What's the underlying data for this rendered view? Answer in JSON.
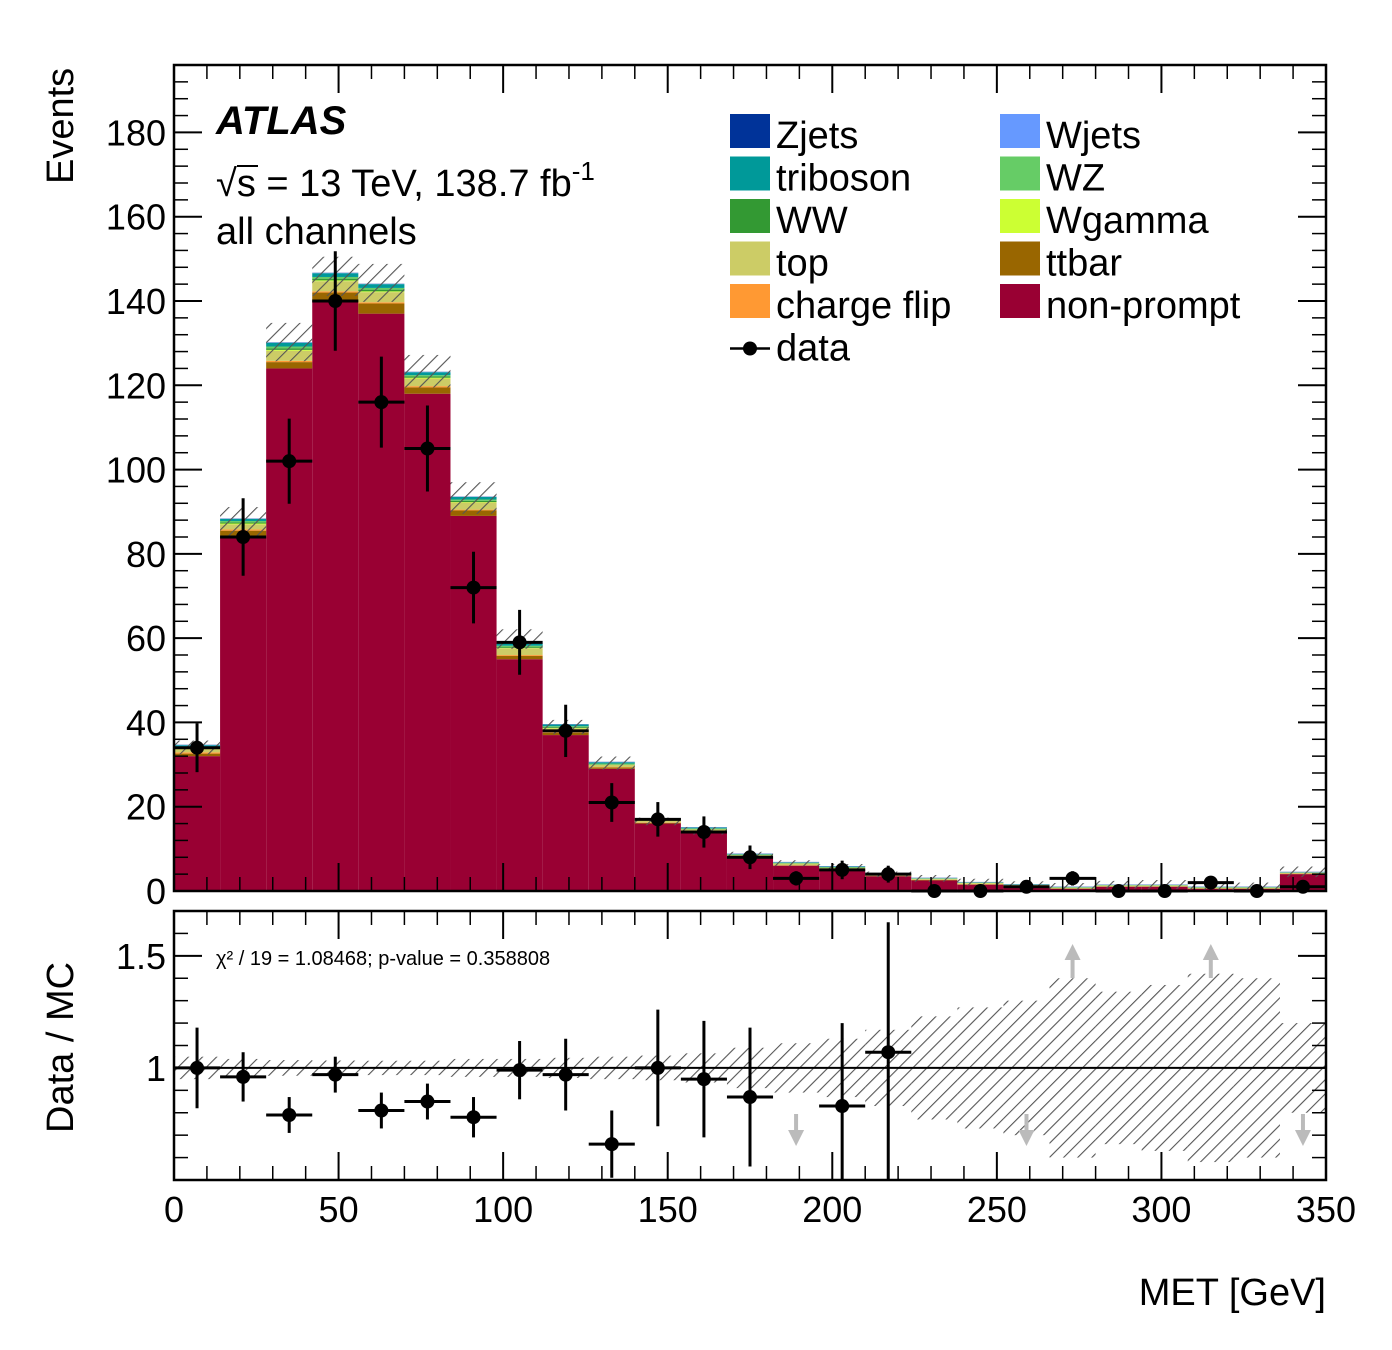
{
  "chart_data": [
    {
      "type": "bar",
      "stacked": true,
      "ylabel": "Events",
      "ylim": [
        0,
        196
      ],
      "yticks": [
        0,
        20,
        40,
        60,
        80,
        100,
        120,
        140,
        160,
        180
      ],
      "bin_width": 14,
      "x": [
        7,
        21,
        35,
        49,
        63,
        77,
        91,
        105,
        119,
        133,
        147,
        161,
        175,
        189,
        203,
        217,
        231,
        245,
        259,
        273,
        287,
        301,
        315,
        329,
        343
      ],
      "series": [
        {
          "name": "non-prompt",
          "color": "#990033",
          "values": [
            32,
            84,
            124,
            140,
            137,
            118,
            89,
            55,
            37,
            29,
            16,
            14,
            8,
            6,
            5,
            3.5,
            2.5,
            1.5,
            1,
            0.5,
            1,
            1,
            0.5,
            0.5,
            4
          ]
        },
        {
          "name": "ttbar",
          "color": "#996600",
          "values": [
            0.6,
            1.5,
            1.5,
            2,
            2.4,
            1.5,
            1.3,
            0.8,
            0.5,
            0.3,
            0.2,
            0.2,
            0.1,
            0.1,
            0.1,
            0.1,
            0.1,
            0.1,
            0.1,
            0.1,
            0.1,
            0.1,
            0.1,
            0.1,
            0.1
          ]
        },
        {
          "name": "charge flip",
          "color": "#ff9933",
          "values": [
            0.3,
            0.3,
            0.3,
            0.3,
            0.3,
            0.3,
            0.2,
            0.2,
            0.1,
            0.1,
            0.1,
            0.1,
            0.05,
            0.05,
            0.05,
            0.05,
            0.05,
            0.05,
            0.05,
            0.05,
            0.05,
            0.05,
            0.05,
            0.05,
            0.05
          ]
        },
        {
          "name": "top",
          "color": "#cccc66",
          "values": [
            0.8,
            1.2,
            2.4,
            2.4,
            2.4,
            1.8,
            1.7,
            1.6,
            1,
            0.5,
            0.4,
            0.3,
            0.3,
            0.3,
            0.3,
            0.2,
            0.2,
            0.2,
            0.2,
            0.1,
            0.1,
            0.1,
            0.1,
            0.1,
            0.1
          ]
        },
        {
          "name": "Wgamma",
          "color": "#ccff33",
          "values": [
            0.1,
            0.2,
            0.2,
            0.2,
            0.2,
            0.2,
            0.1,
            0.1,
            0.1,
            0.05,
            0.05,
            0.05,
            0.05,
            0.05,
            0.05,
            0.05,
            0.05,
            0.05,
            0.05,
            0.05,
            0.05,
            0.05,
            0.05,
            0.05,
            0.05
          ]
        },
        {
          "name": "WW",
          "color": "#339933",
          "values": [
            0.2,
            0.3,
            0.4,
            0.4,
            0.4,
            0.3,
            0.3,
            0.2,
            0.2,
            0.1,
            0.1,
            0.1,
            0.1,
            0.1,
            0.1,
            0.1,
            0.05,
            0.05,
            0.05,
            0.05,
            0.05,
            0.05,
            0.05,
            0.05,
            0.05
          ]
        },
        {
          "name": "WZ",
          "color": "#66cc66",
          "values": [
            0.3,
            0.3,
            0.4,
            0.4,
            0.4,
            0.3,
            0.3,
            0.3,
            0.2,
            0.2,
            0.1,
            0.1,
            0.1,
            0.1,
            0.1,
            0.1,
            0.05,
            0.05,
            0.05,
            0.05,
            0.05,
            0.05,
            0.05,
            0.05,
            0.05
          ]
        },
        {
          "name": "triboson",
          "color": "#009999",
          "values": [
            0.3,
            0.5,
            0.9,
            0.9,
            0.9,
            0.7,
            0.6,
            0.5,
            0.4,
            0.3,
            0.2,
            0.2,
            0.1,
            0.1,
            0.1,
            0.1,
            0.05,
            0.05,
            0.05,
            0.05,
            0.05,
            0.05,
            0.05,
            0.05,
            0.05
          ]
        },
        {
          "name": "Wjets",
          "color": "#6699ff",
          "values": [
            0.05,
            0.05,
            0.05,
            0.05,
            0.05,
            0.05,
            0.05,
            0.05,
            0.05,
            0.05,
            0.05,
            0.05,
            0.05,
            0.05,
            0.05,
            0.05,
            0.05,
            0.05,
            0.05,
            0.05,
            0.05,
            0.05,
            0.05,
            0.05,
            0.05
          ]
        },
        {
          "name": "Zjets",
          "color": "#003399",
          "values": [
            0.05,
            0.05,
            0.05,
            0.05,
            0.05,
            0.05,
            0.05,
            0.05,
            0.05,
            0.05,
            0.05,
            0.05,
            0.05,
            0.05,
            0.05,
            0.05,
            0.05,
            0.05,
            0.05,
            0.05,
            0.05,
            0.05,
            0.05,
            0.05,
            0.05
          ]
        }
      ],
      "uncertainty_band": {
        "low": [
          32.4,
          84.2,
          125.7,
          141.2,
          139.8,
          119.5,
          89.5,
          57.5,
          37.2,
          28.8,
          15.6,
          13.4,
          7.8,
          5.9,
          5.0,
          3.3,
          2.2,
          1.3,
          0.7,
          0.3,
          0.6,
          0.5,
          0.3,
          0.3,
          3.3
        ],
        "high": [
          35.7,
          91.1,
          134.8,
          150.5,
          148.8,
          127.2,
          97.0,
          62.1,
          40.6,
          31.9,
          17.4,
          15.2,
          9.3,
          7.3,
          6.4,
          4.6,
          3.8,
          2.9,
          2.3,
          1.9,
          2.4,
          2.6,
          2.1,
          2.0,
          5.8
        ]
      },
      "data": {
        "name": "data",
        "x": [
          7,
          21,
          35,
          49,
          63,
          77,
          91,
          105,
          119,
          133,
          147,
          161,
          175,
          189,
          203,
          217,
          231,
          245,
          259,
          273,
          287,
          301,
          315,
          329,
          343
        ],
        "y": [
          34,
          84,
          102,
          140,
          116,
          105,
          72,
          59,
          38,
          21,
          17,
          14,
          8,
          3,
          5,
          4,
          0,
          0,
          1,
          3,
          0,
          0,
          2,
          0,
          1
        ],
        "yerr": [
          5.8,
          9.2,
          10.1,
          11.8,
          10.8,
          10.2,
          8.5,
          7.7,
          6.2,
          4.6,
          4.1,
          3.7,
          2.8,
          1.7,
          2.2,
          2.0,
          0,
          0,
          1.0,
          1.7,
          0,
          0,
          1.4,
          0,
          1.0
        ]
      }
    },
    {
      "type": "scatter",
      "xlabel": "MET [GeV]",
      "ylabel": "Data / MC",
      "xlim": [
        0,
        350
      ],
      "xticks": [
        0,
        50,
        100,
        150,
        200,
        250,
        300,
        350
      ],
      "ylim": [
        0.5,
        1.7
      ],
      "ytick_labels": [
        {
          "value": 1,
          "label": "1"
        },
        {
          "value": 1.5,
          "label": "1.5"
        }
      ],
      "x": [
        7,
        21,
        35,
        49,
        63,
        77,
        91,
        105,
        119,
        133,
        147,
        161,
        175,
        189,
        203,
        217,
        231,
        245,
        259,
        273,
        287,
        301,
        315,
        329,
        343
      ],
      "ratio": [
        1.0,
        0.96,
        0.79,
        0.97,
        0.81,
        0.85,
        0.78,
        0.99,
        0.97,
        0.66,
        1.0,
        0.95,
        0.87,
        null,
        0.83,
        1.07,
        null,
        null,
        null,
        null,
        null,
        null,
        null,
        null,
        null
      ],
      "ratio_err": [
        0.18,
        0.11,
        0.08,
        0.08,
        0.08,
        0.08,
        0.09,
        0.13,
        0.16,
        0.15,
        0.26,
        0.26,
        0.31,
        0,
        0.37,
        0.58,
        0,
        0,
        0,
        0,
        0,
        0,
        0,
        0,
        0
      ],
      "band_halfwidth": [
        0.05,
        0.04,
        0.035,
        0.033,
        0.032,
        0.032,
        0.04,
        0.04,
        0.045,
        0.05,
        0.055,
        0.065,
        0.09,
        0.11,
        0.13,
        0.17,
        0.23,
        0.27,
        0.3,
        0.4,
        0.34,
        0.37,
        0.42,
        0.4,
        0.2
      ],
      "off_scale_arrows": [
        {
          "x": 189,
          "direction": "down"
        },
        {
          "x": 259,
          "direction": "down"
        },
        {
          "x": 273,
          "direction": "up"
        },
        {
          "x": 315,
          "direction": "up"
        },
        {
          "x": 343,
          "direction": "down"
        }
      ],
      "reference_line": 1
    }
  ],
  "labels": {
    "experiment": "ATLAS",
    "energy": "s = 13 TeV, 138.7 fb",
    "lumi_exponent": "-1",
    "channel": "all channels",
    "chi2": "χ² / 19 = 1.08468; p-value = 0.358808"
  },
  "legend": [
    {
      "label": "Zjets",
      "color": "#003399"
    },
    {
      "label": "Wjets",
      "color": "#6699ff"
    },
    {
      "label": "triboson",
      "color": "#009999"
    },
    {
      "label": "WZ",
      "color": "#66cc66"
    },
    {
      "label": "WW",
      "color": "#339933"
    },
    {
      "label": "Wgamma",
      "color": "#ccff33"
    },
    {
      "label": "top",
      "color": "#cccc66"
    },
    {
      "label": "ttbar",
      "color": "#996600"
    },
    {
      "label": "charge flip",
      "color": "#ff9933"
    },
    {
      "label": "non-prompt",
      "color": "#990033"
    },
    {
      "label": "data",
      "color": "#000000"
    }
  ]
}
